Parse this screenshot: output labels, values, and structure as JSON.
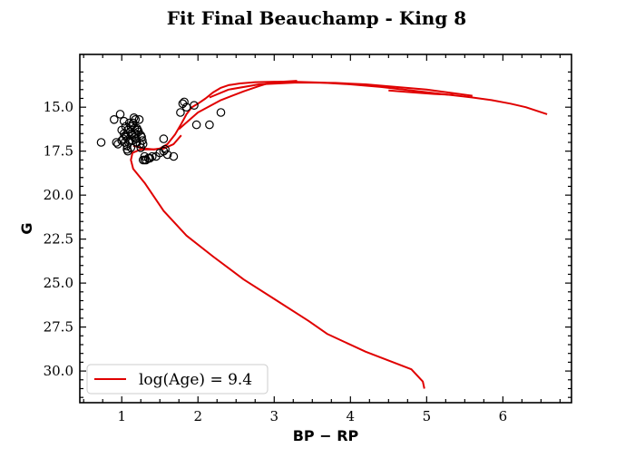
{
  "chart_data": {
    "type": "scatter",
    "title": "Fit Final Beauchamp - King 8",
    "xlabel": "BP − RP",
    "ylabel": "G",
    "xlim": [
      0.45,
      6.9
    ],
    "ylim": [
      31.8,
      12.0
    ],
    "y_inverted": true,
    "grid": false,
    "legend_position": "lower-left",
    "x_ticks": [
      1,
      2,
      3,
      4,
      5,
      6
    ],
    "x_tick_labels": [
      "1",
      "2",
      "3",
      "4",
      "5",
      "6"
    ],
    "y_ticks": [
      15.0,
      17.5,
      20.0,
      22.5,
      25.0,
      27.5,
      30.0
    ],
    "y_tick_labels": [
      "15.0",
      "17.5",
      "20.0",
      "22.5",
      "25.0",
      "27.5",
      "30.0"
    ],
    "colors": {
      "isochrone": "#e00000",
      "stars": "#000000"
    },
    "series": [
      {
        "name": "log(Age) = 9.4",
        "kind": "line",
        "x": [
          4.97,
          4.95,
          4.8,
          4.2,
          3.7,
          3.45,
          3.0,
          2.6,
          2.2,
          1.85,
          1.55,
          1.3,
          1.15,
          1.12,
          1.14,
          1.25,
          1.42,
          1.5,
          1.6,
          1.7,
          1.78,
          1.85,
          1.92,
          2.0,
          2.1,
          2.2,
          2.3,
          2.4,
          2.55,
          2.75,
          3.0,
          3.3,
          3.6,
          4.0,
          4.4,
          4.8,
          5.2,
          5.6,
          5.85,
          6.1,
          6.3,
          6.58
        ],
        "y": [
          31.0,
          30.6,
          29.9,
          28.9,
          27.9,
          27.15,
          25.9,
          24.8,
          23.5,
          22.3,
          20.9,
          19.3,
          18.5,
          18.0,
          17.6,
          17.4,
          17.4,
          17.35,
          17.1,
          16.55,
          15.95,
          15.4,
          15.0,
          14.8,
          14.5,
          14.15,
          13.9,
          13.75,
          13.65,
          13.58,
          13.55,
          13.56,
          13.6,
          13.7,
          13.85,
          14.05,
          14.25,
          14.45,
          14.6,
          14.8,
          15.0,
          15.4
        ]
      },
      {
        "name": "",
        "kind": "line",
        "x": [
          1.15,
          1.2,
          1.3,
          1.42,
          1.55,
          1.68,
          1.78
        ],
        "y": [
          17.2,
          17.25,
          17.35,
          17.4,
          17.35,
          17.1,
          16.6
        ]
      },
      {
        "name": "",
        "kind": "line",
        "x": [
          1.75,
          2.0,
          2.3,
          2.6,
          2.8,
          2.95,
          3.1,
          3.3
        ],
        "y": [
          16.25,
          15.3,
          14.6,
          14.1,
          13.8,
          13.6,
          13.55,
          13.5
        ]
      },
      {
        "name": "",
        "kind": "line",
        "x": [
          2.15,
          2.4,
          2.8,
          3.3,
          3.8,
          4.2,
          4.6,
          5.0,
          5.35,
          5.6
        ],
        "y": [
          14.45,
          14.0,
          13.7,
          13.6,
          13.62,
          13.7,
          13.85,
          14.0,
          14.2,
          14.35
        ]
      },
      {
        "name": "",
        "kind": "line",
        "x": [
          4.5,
          4.8,
          5.1,
          5.35
        ],
        "y": [
          14.05,
          14.15,
          14.25,
          14.3
        ]
      },
      {
        "name": "",
        "kind": "scatter",
        "x": [
          0.73,
          0.9,
          0.93,
          0.98,
          1.0,
          1.02,
          1.03,
          1.05,
          1.05,
          1.07,
          1.08,
          1.08,
          1.1,
          1.1,
          1.12,
          1.12,
          1.13,
          1.14,
          1.15,
          1.16,
          1.17,
          1.18,
          1.18,
          1.2,
          1.2,
          1.22,
          1.23,
          1.25,
          1.25,
          1.27,
          1.28,
          1.28,
          1.3,
          1.3,
          1.32,
          1.35,
          1.37,
          1.4,
          1.45,
          1.5,
          1.55,
          1.57,
          1.6,
          1.55,
          1.68,
          1.77,
          1.8,
          1.82,
          1.85,
          1.95,
          1.98,
          2.15,
          2.3,
          1.04,
          1.06,
          1.09,
          1.11,
          1.13,
          1.0,
          1.03,
          1.07,
          1.19,
          1.21,
          1.24,
          1.26,
          1.17,
          1.14,
          0.95
        ],
        "y": [
          17.0,
          15.7,
          17.0,
          15.4,
          16.3,
          16.8,
          15.8,
          16.1,
          16.6,
          17.2,
          16.3,
          17.5,
          15.9,
          16.9,
          16.1,
          17.3,
          16.5,
          16.0,
          15.9,
          15.6,
          16.2,
          15.7,
          16.5,
          16.2,
          17.0,
          16.4,
          15.7,
          16.6,
          17.3,
          16.9,
          17.1,
          18.0,
          17.8,
          18.0,
          18.0,
          17.9,
          17.9,
          17.8,
          17.8,
          17.6,
          17.5,
          17.4,
          17.7,
          16.8,
          17.8,
          15.3,
          14.8,
          14.7,
          15.0,
          14.9,
          16.0,
          16.0,
          15.3,
          17.0,
          16.7,
          17.0,
          16.4,
          16.6,
          16.9,
          16.5,
          17.4,
          16.8,
          16.3,
          17.1,
          16.7,
          16.7,
          16.9,
          17.1
        ]
      }
    ],
    "legend": [
      {
        "label": "log(Age) = 9.4",
        "color": "#e00000",
        "marker": "line"
      }
    ]
  }
}
